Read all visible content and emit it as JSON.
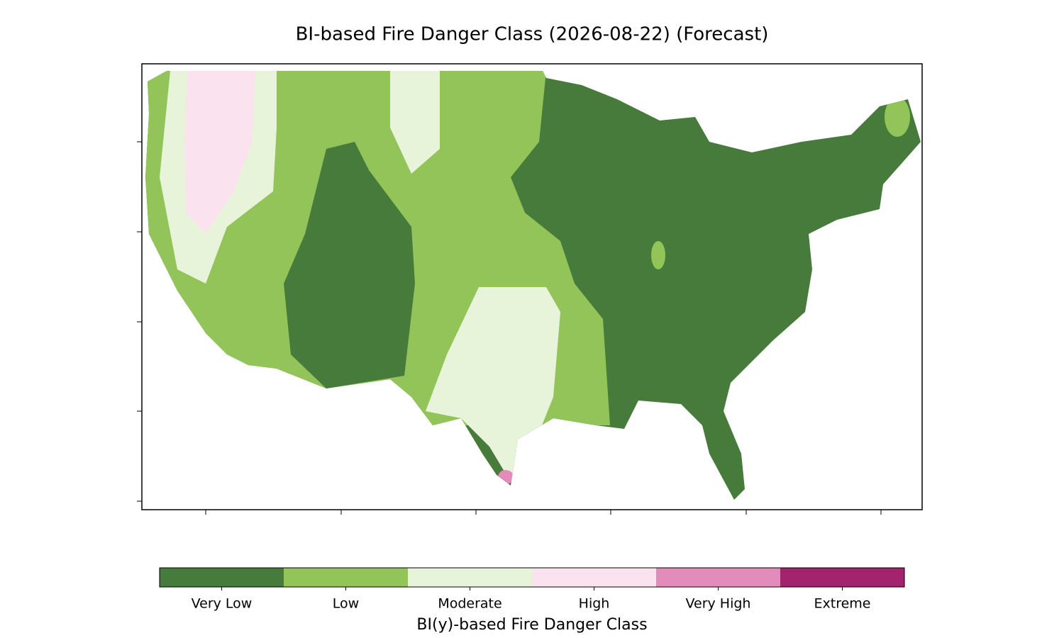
{
  "title": "BI-based Fire Danger Class (2026-08-22) (Forecast)",
  "colorbar": {
    "label": "BI(y)-based Fire Danger Class",
    "classes": [
      {
        "label": "Very Low",
        "color": "#467b3b"
      },
      {
        "label": "Low",
        "color": "#93c45a"
      },
      {
        "label": "Moderate",
        "color": "#e8f4da"
      },
      {
        "label": "High",
        "color": "#fbe2ef"
      },
      {
        "label": "Very High",
        "color": "#e38bbb"
      },
      {
        "label": "Extreme",
        "color": "#a3246c"
      }
    ]
  }
}
